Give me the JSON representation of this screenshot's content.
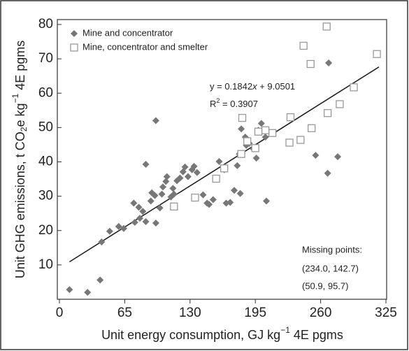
{
  "chart_data": {
    "type": "scatter",
    "x_label": [
      "Unit energy consumption, GJ kg",
      "−1",
      " 4E pgms"
    ],
    "y_label": [
      "Unit GHG emissions, t CO",
      "2",
      "e kg",
      "−1",
      " 4E pgms"
    ],
    "xlim": [
      0,
      325
    ],
    "ylim": [
      0,
      80
    ],
    "xticks": [
      0,
      65,
      130,
      195,
      260,
      325
    ],
    "yticks": [
      10,
      20,
      30,
      40,
      50,
      60,
      70,
      80
    ],
    "series": [
      {
        "name": "Mine and concentrator",
        "color": "#777777",
        "marker": "diamond",
        "x": [
          10,
          28,
          40.5,
          42,
          50,
          59,
          64,
          75,
          74,
          79,
          83,
          80,
          86,
          86,
          96,
          96,
          91,
          92,
          95,
          100,
          102,
          103,
          106,
          107,
          111,
          113,
          114,
          117,
          120,
          123,
          125,
          128,
          132,
          134,
          137,
          143,
          147,
          149,
          153,
          159,
          164,
          166,
          170,
          174,
          177,
          179,
          180,
          181,
          185,
          186,
          189,
          193,
          196,
          198,
          201,
          205,
          206,
          255,
          267,
          268,
          277
        ],
        "y": [
          2.8,
          2,
          5.6,
          16.7,
          19.8,
          21.2,
          20.6,
          22.4,
          28,
          26.8,
          25.6,
          23.6,
          22.6,
          39.3,
          52,
          22.2,
          28.6,
          31,
          30.2,
          26.6,
          30.6,
          32.7,
          34.3,
          35.7,
          29.8,
          32.3,
          30.6,
          34.5,
          35.3,
          37.1,
          38.5,
          35.7,
          37.7,
          38.7,
          36.9,
          30.4,
          28,
          27.6,
          29,
          40.1,
          37.7,
          28,
          28.2,
          31.7,
          38.9,
          42.3,
          30.8,
          49.6,
          47.2,
          44.8,
          45.4,
          43.8,
          41.1,
          49.2,
          51.2,
          47.2,
          28.6,
          41.9,
          36.7,
          68.8,
          41.5
        ]
      },
      {
        "name": "Mine, concentrator and smelter",
        "color": "#999999",
        "marker": "square",
        "x": [
          266,
          243,
          250,
          316,
          293,
          279,
          267,
          251,
          240,
          229,
          230,
          212,
          205,
          198,
          195,
          187,
          182,
          181,
          164,
          156,
          135,
          114
        ],
        "y": [
          79.4,
          73.8,
          68.5,
          71.4,
          61.7,
          56.8,
          54.2,
          49.8,
          46.4,
          45.6,
          53,
          48.4,
          49.2,
          48.8,
          44,
          46,
          52.8,
          42.3,
          38.1,
          35.1,
          29.6,
          27
        ]
      }
    ],
    "trendline": {
      "x": [
        10,
        318
      ],
      "y": [
        10.89,
        67.63
      ],
      "equation": [
        "y = 0.1842",
        "x",
        " + 9.0501"
      ],
      "r_squared": [
        "R",
        "2",
        " = 0.3907"
      ]
    },
    "annotation": [
      "Missing points:",
      "(234.0, 142.7)",
      "(50.9, 95.7)"
    ]
  }
}
